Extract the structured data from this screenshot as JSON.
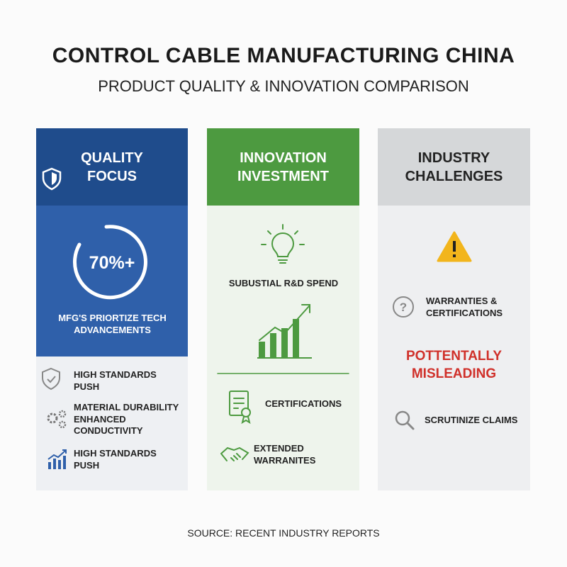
{
  "header": {
    "title": "CONTROL CABLE MANUFACTURING CHINA",
    "subtitle": "PRODUCT QUALITY & INNOVATION COMPARISON"
  },
  "columns": [
    {
      "title": "QUALITY FOCUS",
      "stat": "70%+",
      "stat_caption": "MFG'S PRIORTIZE TECH ADVANCEMENTS",
      "items": [
        "HIGH STANDARDS PUSH",
        "MATERIAL DURABILITY ENHANCED CONDUCTIVITY",
        "HIGH STANDARDS PUSH"
      ]
    },
    {
      "title": "INNOVATION INVESTMENT",
      "items": [
        "SUBUSTIAL R&D SPEND",
        "CERTIFICATIONS",
        "EXTENDED WARRANITES"
      ]
    },
    {
      "title": "INDUSTRY CHALLENGES",
      "items": [
        "WARRANTIES & CERTIFICATIONS",
        "POTTENTALLY MISLEADING",
        "SCRUTINIZE CLAIMS"
      ]
    }
  ],
  "footer": {
    "source": "SOURCE: RECENT INDUSTRY REPORTS"
  }
}
